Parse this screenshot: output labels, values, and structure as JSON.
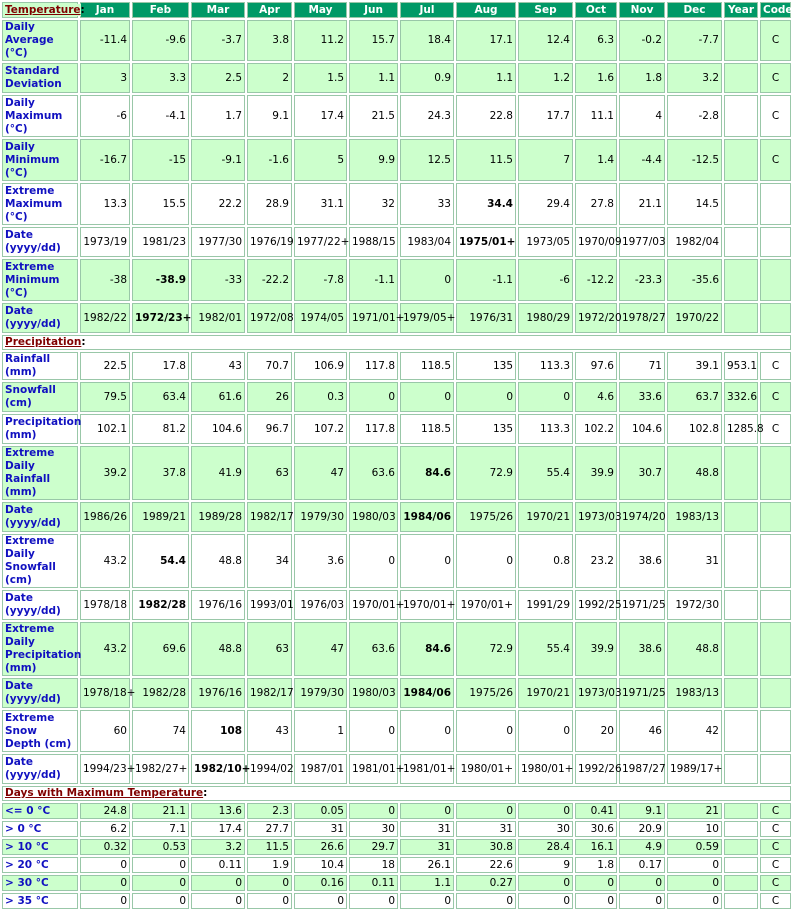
{
  "months": [
    "Jan",
    "Feb",
    "Mar",
    "Apr",
    "May",
    "Jun",
    "Jul",
    "Aug",
    "Sep",
    "Oct",
    "Nov",
    "Dec",
    "Year",
    "Code"
  ],
  "sections": [
    {
      "title": "Temperature",
      "rows": [
        {
          "label": "Daily Average (°C)",
          "v": [
            "-11.4",
            "-9.6",
            "-3.7",
            "3.8",
            "11.2",
            "15.7",
            "18.4",
            "17.1",
            "12.4",
            "6.3",
            "-0.2",
            "-7.7",
            "",
            "C"
          ],
          "bold": [],
          "shade": "g",
          "h": 28
        },
        {
          "label": "Standard Deviation",
          "v": [
            "3",
            "3.3",
            "2.5",
            "2",
            "1.5",
            "1.1",
            "0.9",
            "1.1",
            "1.2",
            "1.6",
            "1.8",
            "3.2",
            "",
            "C"
          ],
          "bold": [],
          "shade": "g",
          "h": 28
        },
        {
          "label": "Daily Maximum (°C)",
          "v": [
            "-6",
            "-4.1",
            "1.7",
            "9.1",
            "17.4",
            "21.5",
            "24.3",
            "22.8",
            "17.7",
            "11.1",
            "4",
            "-2.8",
            "",
            "C"
          ],
          "bold": [],
          "shade": "w",
          "h": 40
        },
        {
          "label": "Daily Minimum (°C)",
          "v": [
            "-16.7",
            "-15",
            "-9.1",
            "-1.6",
            "5",
            "9.9",
            "12.5",
            "11.5",
            "7",
            "1.4",
            "-4.4",
            "-12.5",
            "",
            "C"
          ],
          "bold": [],
          "shade": "g",
          "h": 40
        },
        {
          "label": "Extreme Maximum (°C)",
          "v": [
            "13.3",
            "15.5",
            "22.2",
            "28.9",
            "31.1",
            "32",
            "33",
            "34.4",
            "29.4",
            "27.8",
            "21.1",
            "14.5",
            "",
            ""
          ],
          "bold": [
            7
          ],
          "shade": "w",
          "h": 40
        },
        {
          "label": "Date (yyyy/dd)",
          "v": [
            "1973/19",
            "1981/23",
            "1977/30",
            "1976/19",
            "1977/22+",
            "1988/15",
            "1983/04",
            "1975/01+",
            "1973/05",
            "1970/09",
            "1977/03",
            "1982/04",
            "",
            ""
          ],
          "bold": [
            7
          ],
          "shade": "w",
          "h": 28
        },
        {
          "label": "Extreme Minimum (°C)",
          "v": [
            "-38",
            "-38.9",
            "-33",
            "-22.2",
            "-7.8",
            "-1.1",
            "0",
            "-1.1",
            "-6",
            "-12.2",
            "-23.3",
            "-35.6",
            "",
            ""
          ],
          "bold": [
            1
          ],
          "shade": "g",
          "h": 40
        },
        {
          "label": "Date (yyyy/dd)",
          "v": [
            "1982/22",
            "1972/23+",
            "1982/01",
            "1972/08",
            "1974/05",
            "1971/01+",
            "1979/05+",
            "1976/31",
            "1980/29",
            "1972/20",
            "1978/27",
            "1970/22",
            "",
            ""
          ],
          "bold": [
            1
          ],
          "shade": "g",
          "h": 28
        }
      ]
    },
    {
      "title": "Precipitation",
      "rows": [
        {
          "label": "Rainfall (mm)",
          "v": [
            "22.5",
            "17.8",
            "43",
            "70.7",
            "106.9",
            "117.8",
            "118.5",
            "135",
            "113.3",
            "97.6",
            "71",
            "39.1",
            "953.1",
            "C"
          ],
          "bold": [],
          "shade": "w",
          "h": 14
        },
        {
          "label": "Snowfall (cm)",
          "v": [
            "79.5",
            "63.4",
            "61.6",
            "26",
            "0.3",
            "0",
            "0",
            "0",
            "0",
            "4.6",
            "33.6",
            "63.7",
            "332.6",
            "C"
          ],
          "bold": [],
          "shade": "g",
          "h": 28
        },
        {
          "label": "Precipitation (mm)",
          "v": [
            "102.1",
            "81.2",
            "104.6",
            "96.7",
            "107.2",
            "117.8",
            "118.5",
            "135",
            "113.3",
            "102.2",
            "104.6",
            "102.8",
            "1285.8",
            "C"
          ],
          "bold": [],
          "shade": "w",
          "h": 28
        },
        {
          "label": "Extreme Daily Rainfall (mm)",
          "v": [
            "39.2",
            "37.8",
            "41.9",
            "63",
            "47",
            "63.6",
            "84.6",
            "72.9",
            "55.4",
            "39.9",
            "30.7",
            "48.8",
            "",
            ""
          ],
          "bold": [
            6
          ],
          "shade": "g",
          "h": 28
        },
        {
          "label": "Date (yyyy/dd)",
          "v": [
            "1986/26",
            "1989/21",
            "1989/28",
            "1982/17",
            "1979/30",
            "1980/03",
            "1984/06",
            "1975/26",
            "1970/21",
            "1973/03",
            "1974/20",
            "1983/13",
            "",
            ""
          ],
          "bold": [
            6
          ],
          "shade": "g",
          "h": 28
        },
        {
          "label": "Extreme Daily Snowfall (cm)",
          "v": [
            "43.2",
            "54.4",
            "48.8",
            "34",
            "3.6",
            "0",
            "0",
            "0",
            "0.8",
            "23.2",
            "38.6",
            "31",
            "",
            ""
          ],
          "bold": [
            1
          ],
          "shade": "w",
          "h": 40
        },
        {
          "label": "Date (yyyy/dd)",
          "v": [
            "1978/18",
            "1982/28",
            "1976/16",
            "1993/01",
            "1976/03",
            "1970/01+",
            "1970/01+",
            "1970/01+",
            "1991/29",
            "1992/25",
            "1971/25",
            "1972/30",
            "",
            ""
          ],
          "bold": [
            1
          ],
          "shade": "w",
          "h": 28
        },
        {
          "label": "Extreme Daily Precipitation (mm)",
          "v": [
            "43.2",
            "69.6",
            "48.8",
            "63",
            "47",
            "63.6",
            "84.6",
            "72.9",
            "55.4",
            "39.9",
            "38.6",
            "48.8",
            "",
            ""
          ],
          "bold": [
            6
          ],
          "shade": "g",
          "h": 40
        },
        {
          "label": "Date (yyyy/dd)",
          "v": [
            "1978/18+",
            "1982/28",
            "1976/16",
            "1982/17",
            "1979/30",
            "1980/03",
            "1984/06",
            "1975/26",
            "1970/21",
            "1973/03",
            "1971/25",
            "1983/13",
            "",
            ""
          ],
          "bold": [
            6
          ],
          "shade": "g",
          "h": 28
        },
        {
          "label": "Extreme Snow Depth (cm)",
          "v": [
            "60",
            "74",
            "108",
            "43",
            "1",
            "0",
            "0",
            "0",
            "0",
            "20",
            "46",
            "42",
            "",
            ""
          ],
          "bold": [
            2
          ],
          "shade": "w",
          "h": 40
        },
        {
          "label": "Date (yyyy/dd)",
          "v": [
            "1994/23+",
            "1982/27+",
            "1982/10+",
            "1994/02",
            "1987/01",
            "1981/01+",
            "1981/01+",
            "1980/01+",
            "1980/01+",
            "1992/26",
            "1987/27",
            "1989/17+",
            "",
            ""
          ],
          "bold": [
            2
          ],
          "shade": "w",
          "h": 28
        }
      ]
    },
    {
      "title": "Days with Maximum Temperature",
      "rows": [
        {
          "label": "<= 0 °C",
          "v": [
            "24.8",
            "21.1",
            "13.6",
            "2.3",
            "0.05",
            "0",
            "0",
            "0",
            "0",
            "0.41",
            "9.1",
            "21",
            "",
            "C"
          ],
          "bold": [],
          "shade": "g",
          "h": 14
        },
        {
          "label": "> 0 °C",
          "v": [
            "6.2",
            "7.1",
            "17.4",
            "27.7",
            "31",
            "30",
            "31",
            "31",
            "30",
            "30.6",
            "20.9",
            "10",
            "",
            "C"
          ],
          "bold": [],
          "shade": "w",
          "h": 14
        },
        {
          "label": "> 10 °C",
          "v": [
            "0.32",
            "0.53",
            "3.2",
            "11.5",
            "26.6",
            "29.7",
            "31",
            "30.8",
            "28.4",
            "16.1",
            "4.9",
            "0.59",
            "",
            "C"
          ],
          "bold": [],
          "shade": "g",
          "h": 14
        },
        {
          "label": "> 20 °C",
          "v": [
            "0",
            "0",
            "0.11",
            "1.9",
            "10.4",
            "18",
            "26.1",
            "22.6",
            "9",
            "1.8",
            "0.17",
            "0",
            "",
            "C"
          ],
          "bold": [],
          "shade": "w",
          "h": 14
        },
        {
          "label": "> 30 °C",
          "v": [
            "0",
            "0",
            "0",
            "0",
            "0.16",
            "0.11",
            "1.1",
            "0.27",
            "0",
            "0",
            "0",
            "0",
            "",
            "C"
          ],
          "bold": [],
          "shade": "g",
          "h": 14
        },
        {
          "label": "> 35 °C",
          "v": [
            "0",
            "0",
            "0",
            "0",
            "0",
            "0",
            "0",
            "0",
            "0",
            "0",
            "0",
            "0",
            "",
            "C"
          ],
          "bold": [],
          "shade": "w",
          "h": 14
        }
      ]
    }
  ]
}
